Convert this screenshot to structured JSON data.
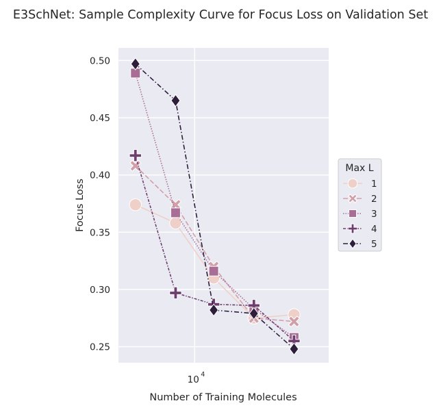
{
  "chart_data": {
    "type": "line",
    "title": "E3SchNet: Sample Complexity Curve for Focus Loss on Validation Set",
    "xlabel": "Number of Training Molecules",
    "ylabel": "Focus Loss",
    "xscale": "log",
    "x_tick_labels": [
      {
        "base": "10",
        "exp": "4",
        "value": 10000
      }
    ],
    "y_ticks": [
      0.25,
      0.3,
      0.35,
      0.4,
      0.45,
      0.5
    ],
    "y_tick_labels": [
      "0.25",
      "0.30",
      "0.35",
      "0.40",
      "0.45",
      "0.50"
    ],
    "xlim": [
      4100,
      48000
    ],
    "ylim": [
      0.236,
      0.511
    ],
    "grid": true,
    "legend": {
      "title": "Max L",
      "placement": "right"
    },
    "x": [
      5000,
      8000,
      12500,
      20000,
      32000
    ],
    "series": [
      {
        "name": "1",
        "color": "#efd0c8",
        "marker": "circle",
        "dash": "",
        "values": [
          0.374,
          0.358,
          0.31,
          0.275,
          0.278
        ]
      },
      {
        "name": "2",
        "color": "#d19fa9",
        "marker": "x",
        "dash": "7,3",
        "values": [
          0.408,
          0.374,
          0.32,
          0.275,
          0.272
        ]
      },
      {
        "name": "3",
        "color": "#a86e96",
        "marker": "square",
        "dash": "1.5,2",
        "values": [
          0.489,
          0.367,
          0.316,
          0.283,
          0.258
        ]
      },
      {
        "name": "4",
        "color": "#6e3f6e",
        "marker": "plus",
        "dash": "4,2,1.5,2",
        "values": [
          0.417,
          0.297,
          0.287,
          0.286,
          0.255
        ]
      },
      {
        "name": "5",
        "color": "#2e1e3b",
        "marker": "diamond",
        "dash": "7,3,1.5,3",
        "values": [
          0.497,
          0.465,
          0.282,
          0.279,
          0.248
        ]
      }
    ]
  }
}
